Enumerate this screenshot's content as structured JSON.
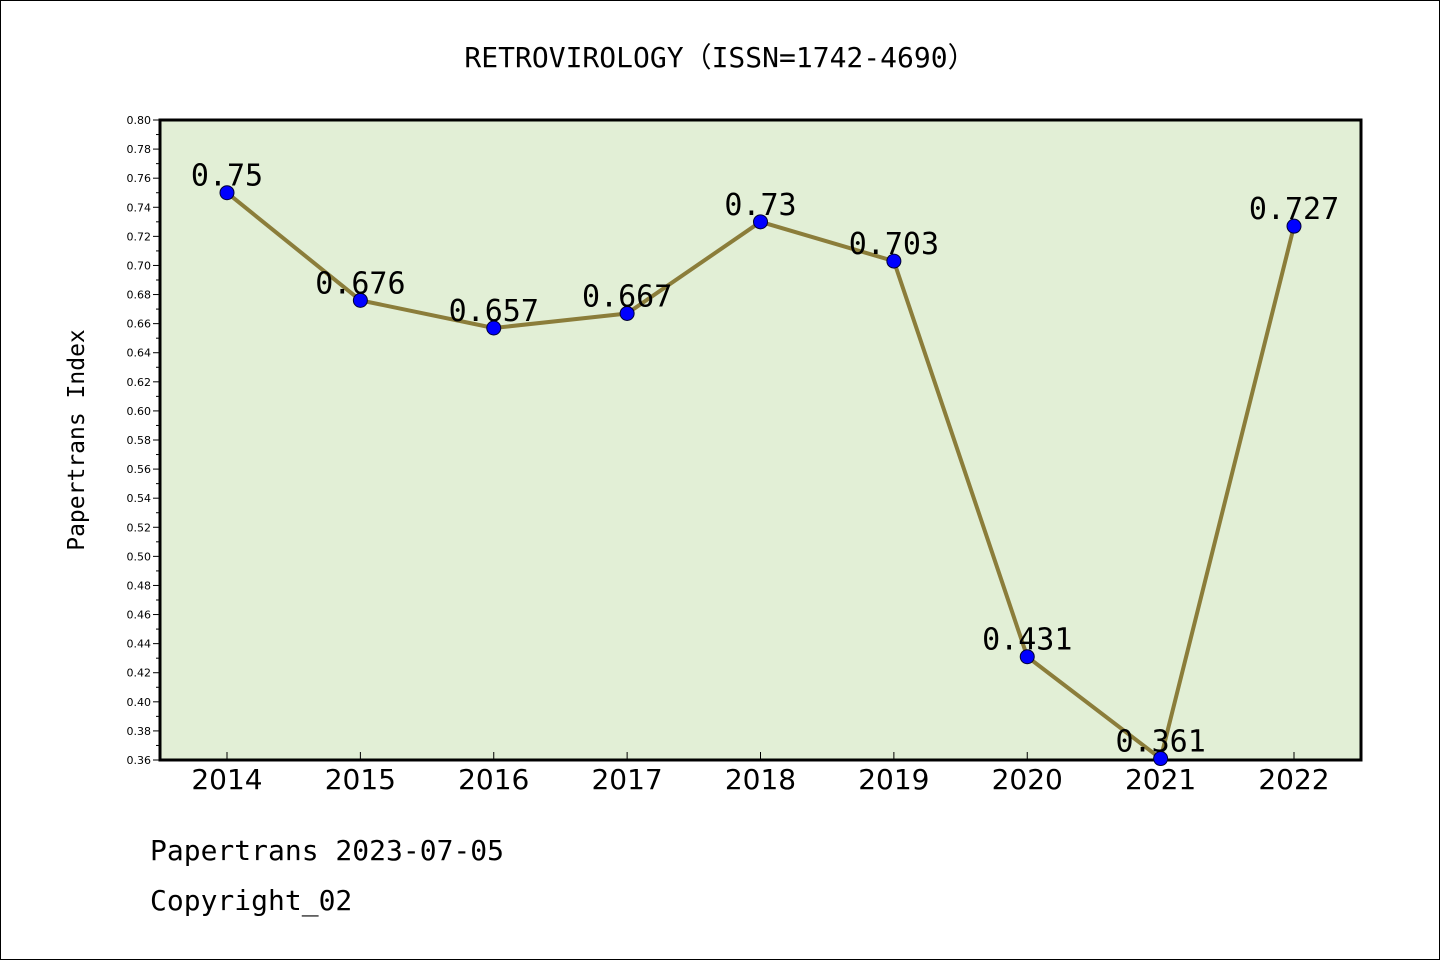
{
  "chart_data": {
    "type": "line",
    "title": "RETROVIROLOGY（ISSN=1742-4690）",
    "xlabel": "",
    "ylabel": "Papertrans Index",
    "categories": [
      "2014",
      "2015",
      "2016",
      "2017",
      "2018",
      "2019",
      "2020",
      "2021",
      "2022"
    ],
    "series": [
      {
        "values": [
          0.75,
          0.676,
          0.657,
          0.667,
          0.73,
          0.703,
          0.431,
          0.361,
          0.727
        ],
        "data_labels": [
          "0.75",
          "0.676",
          "0.657",
          "0.667",
          "0.73",
          "0.703",
          "0.431",
          "0.361",
          "0.727"
        ]
      }
    ],
    "ylim": [
      0.36,
      0.8
    ],
    "yticks": [
      "0.36",
      "0.38",
      "0.40",
      "0.42",
      "0.44",
      "0.46",
      "0.48",
      "0.50",
      "0.52",
      "0.54",
      "0.56",
      "0.58",
      "0.60",
      "0.62",
      "0.64",
      "0.66",
      "0.68",
      "0.70",
      "0.72",
      "0.74",
      "0.76",
      "0.78",
      "0.80"
    ],
    "grid": false,
    "legend": "none",
    "colors": {
      "plot_background": "#e2efd6",
      "line": "#8b7d3a",
      "marker": "#0000ff"
    }
  },
  "footer": {
    "date_line": "Papertrans 2023-07-05",
    "copyright": "Copyright_02"
  }
}
